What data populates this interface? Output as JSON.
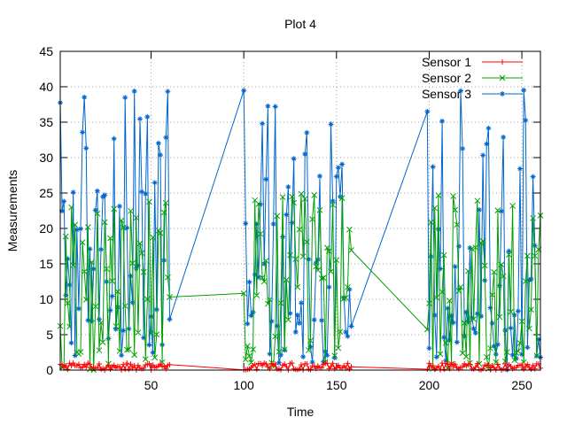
{
  "chart_data": {
    "type": "line",
    "title": "Plot 4",
    "xlabel": "Time",
    "ylabel": "Measurements",
    "xlim": [
      1,
      260
    ],
    "ylim": [
      0,
      45
    ],
    "xticks": [
      50,
      100,
      150,
      200,
      250
    ],
    "yticks": [
      0,
      5,
      10,
      15,
      20,
      25,
      30,
      35,
      40,
      45
    ],
    "grid": true,
    "legend_position": "top-right",
    "series": [
      {
        "name": "Sensor 1",
        "color": "#ff0000",
        "marker": "plus",
        "segments": [
          [
            1,
            60
          ],
          [
            100,
            158
          ],
          [
            199,
            260
          ]
        ],
        "range": [
          0,
          1
        ]
      },
      {
        "name": "Sensor 2",
        "color": "#00a000",
        "marker": "x",
        "segments": [
          [
            1,
            60
          ],
          [
            100,
            158
          ],
          [
            199,
            260
          ]
        ],
        "range": [
          0,
          25
        ]
      },
      {
        "name": "Sensor 3",
        "color": "#0066cc",
        "marker": "star",
        "segments": [
          [
            1,
            60
          ],
          [
            100,
            158
          ],
          [
            199,
            260
          ]
        ],
        "range": [
          0,
          40
        ]
      }
    ]
  }
}
